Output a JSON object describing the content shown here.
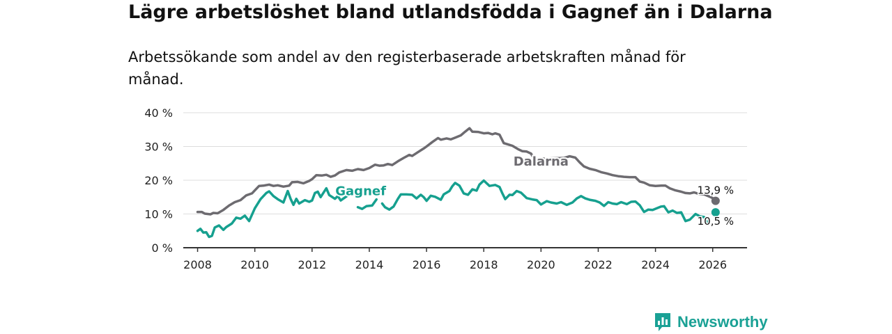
{
  "title": "Lägre arbetslöshet bland utlandsfödda i Gagnef än i Dalarna",
  "subtitle": "Arbetssökande som andel av den registerbaserade arbetskraften månad för månad.",
  "brand": {
    "name": "Newsworthy",
    "icon": "bar-chart-speech-icon"
  },
  "colors": {
    "dalarna": "#6d6b70",
    "gagnef": "#16a08f",
    "grid": "#dddddd",
    "axis": "#333333",
    "brand": "#1aa195"
  },
  "chart_data": {
    "type": "line",
    "title": "Lägre arbetslöshet bland utlandsfödda i Gagnef än i Dalarna",
    "xlabel": "",
    "ylabel": "",
    "xlim": [
      2007.5,
      2027.2
    ],
    "ylim": [
      0,
      40
    ],
    "x_ticks": [
      2008,
      2010,
      2012,
      2014,
      2016,
      2018,
      2020,
      2022,
      2024,
      2026
    ],
    "y_ticks": [
      0,
      10,
      20,
      30,
      40
    ],
    "y_tick_labels": [
      "0 %",
      "10 %",
      "20 %",
      "30 %",
      "40 %"
    ],
    "grid": "horizontal",
    "series": [
      {
        "name": "Dalarna",
        "label": "Dalarna",
        "end_label": "13,9 %",
        "end_value": 13.9,
        "end_x": 2026.1,
        "points": [
          [
            2008.0,
            10.6
          ],
          [
            2008.15,
            10.6
          ],
          [
            2008.25,
            10.1
          ],
          [
            2008.45,
            9.9
          ],
          [
            2008.55,
            10.3
          ],
          [
            2008.7,
            10.2
          ],
          [
            2008.9,
            11.2
          ],
          [
            2009.1,
            12.5
          ],
          [
            2009.3,
            13.5
          ],
          [
            2009.5,
            14.1
          ],
          [
            2009.7,
            15.5
          ],
          [
            2009.9,
            16.1
          ],
          [
            2010.0,
            17.0
          ],
          [
            2010.15,
            18.3
          ],
          [
            2010.3,
            18.4
          ],
          [
            2010.5,
            18.7
          ],
          [
            2010.65,
            18.3
          ],
          [
            2010.8,
            18.5
          ],
          [
            2011.0,
            18.1
          ],
          [
            2011.2,
            18.4
          ],
          [
            2011.3,
            19.4
          ],
          [
            2011.5,
            19.5
          ],
          [
            2011.7,
            19.1
          ],
          [
            2011.9,
            19.8
          ],
          [
            2012.0,
            20.3
          ],
          [
            2012.15,
            21.5
          ],
          [
            2012.35,
            21.4
          ],
          [
            2012.5,
            21.6
          ],
          [
            2012.65,
            21.0
          ],
          [
            2012.8,
            21.4
          ],
          [
            2012.95,
            22.3
          ],
          [
            2013.2,
            23.0
          ],
          [
            2013.4,
            22.8
          ],
          [
            2013.6,
            23.3
          ],
          [
            2013.8,
            23.0
          ],
          [
            2014.0,
            23.6
          ],
          [
            2014.2,
            24.6
          ],
          [
            2014.35,
            24.3
          ],
          [
            2014.5,
            24.4
          ],
          [
            2014.65,
            24.8
          ],
          [
            2014.8,
            24.5
          ],
          [
            2015.0,
            25.6
          ],
          [
            2015.2,
            26.6
          ],
          [
            2015.4,
            27.5
          ],
          [
            2015.5,
            27.2
          ],
          [
            2015.7,
            28.3
          ],
          [
            2015.9,
            29.4
          ],
          [
            2016.0,
            30.0
          ],
          [
            2016.2,
            31.3
          ],
          [
            2016.4,
            32.5
          ],
          [
            2016.5,
            32.0
          ],
          [
            2016.7,
            32.4
          ],
          [
            2016.85,
            32.1
          ],
          [
            2017.0,
            32.6
          ],
          [
            2017.2,
            33.3
          ],
          [
            2017.35,
            34.4
          ],
          [
            2017.5,
            35.4
          ],
          [
            2017.6,
            34.4
          ],
          [
            2017.8,
            34.3
          ],
          [
            2018.0,
            33.9
          ],
          [
            2018.15,
            34.0
          ],
          [
            2018.3,
            33.6
          ],
          [
            2018.4,
            33.9
          ],
          [
            2018.55,
            33.5
          ],
          [
            2018.7,
            31.0
          ],
          [
            2018.85,
            30.6
          ],
          [
            2019.0,
            30.2
          ],
          [
            2019.2,
            29.2
          ],
          [
            2019.35,
            28.6
          ],
          [
            2019.5,
            28.5
          ],
          [
            2019.65,
            27.9
          ],
          [
            2019.75,
            26.5
          ],
          [
            2019.85,
            26.3
          ],
          [
            2020.8,
            26.6
          ],
          [
            2021.0,
            27.1
          ],
          [
            2021.2,
            26.7
          ],
          [
            2021.35,
            25.3
          ],
          [
            2021.5,
            24.1
          ],
          [
            2021.7,
            23.4
          ],
          [
            2021.9,
            23.0
          ],
          [
            2022.1,
            22.4
          ],
          [
            2022.3,
            22.0
          ],
          [
            2022.5,
            21.5
          ],
          [
            2022.7,
            21.2
          ],
          [
            2022.9,
            21.0
          ],
          [
            2023.1,
            20.9
          ],
          [
            2023.3,
            20.9
          ],
          [
            2023.45,
            19.6
          ],
          [
            2023.6,
            19.3
          ],
          [
            2023.8,
            18.5
          ],
          [
            2024.0,
            18.3
          ],
          [
            2024.2,
            18.4
          ],
          [
            2024.35,
            18.4
          ],
          [
            2024.5,
            17.6
          ],
          [
            2024.7,
            17.0
          ],
          [
            2024.9,
            16.6
          ],
          [
            2025.05,
            16.2
          ],
          [
            2025.2,
            16.1
          ],
          [
            2025.35,
            16.4
          ],
          [
            2025.5,
            16.0
          ],
          [
            2025.7,
            15.8
          ],
          [
            2025.9,
            15.1
          ],
          [
            2026.05,
            14.5
          ],
          [
            2026.2,
            14.1
          ]
        ]
      },
      {
        "name": "Gagnef",
        "label": "Gagnef",
        "end_label": "10,5 %",
        "end_value": 10.5,
        "end_x": 2026.1,
        "points": [
          [
            2008.0,
            5.0
          ],
          [
            2008.1,
            5.6
          ],
          [
            2008.2,
            4.5
          ],
          [
            2008.3,
            4.6
          ],
          [
            2008.4,
            3.2
          ],
          [
            2008.5,
            3.5
          ],
          [
            2008.6,
            6.0
          ],
          [
            2008.75,
            6.6
          ],
          [
            2008.9,
            5.3
          ],
          [
            2009.0,
            6.1
          ],
          [
            2009.2,
            7.2
          ],
          [
            2009.35,
            8.9
          ],
          [
            2009.5,
            8.6
          ],
          [
            2009.65,
            9.5
          ],
          [
            2009.8,
            7.9
          ],
          [
            2010.0,
            11.7
          ],
          [
            2010.2,
            14.4
          ],
          [
            2010.4,
            16.2
          ],
          [
            2010.5,
            16.7
          ],
          [
            2010.65,
            15.3
          ],
          [
            2010.8,
            14.4
          ],
          [
            2011.0,
            13.4
          ],
          [
            2011.15,
            16.8
          ],
          [
            2011.25,
            14.5
          ],
          [
            2011.35,
            12.7
          ],
          [
            2011.45,
            14.5
          ],
          [
            2011.55,
            13.1
          ],
          [
            2011.75,
            14.1
          ],
          [
            2011.9,
            13.6
          ],
          [
            2012.0,
            14.0
          ],
          [
            2012.1,
            16.2
          ],
          [
            2012.2,
            16.6
          ],
          [
            2012.3,
            15.0
          ],
          [
            2012.5,
            17.6
          ],
          [
            2012.6,
            15.6
          ],
          [
            2012.8,
            14.5
          ],
          [
            2012.9,
            15.3
          ],
          [
            2013.0,
            14.0
          ],
          [
            2013.2,
            15.2
          ],
          [
            2013.4,
            16.2
          ],
          [
            null,
            null
          ],
          [
            2013.6,
            12.0
          ],
          [
            2013.75,
            11.5
          ],
          [
            2013.9,
            12.3
          ],
          [
            2014.1,
            12.5
          ],
          [
            2014.25,
            14.3
          ],
          [
            null,
            null
          ],
          [
            2014.45,
            13.1
          ],
          [
            2014.55,
            12.0
          ],
          [
            2014.7,
            11.3
          ],
          [
            2014.85,
            12.2
          ],
          [
            2015.0,
            14.5
          ],
          [
            2015.1,
            15.8
          ],
          [
            2015.3,
            15.8
          ],
          [
            2015.5,
            15.7
          ],
          [
            2015.65,
            14.6
          ],
          [
            2015.8,
            15.7
          ],
          [
            2015.9,
            15.0
          ],
          [
            2016.0,
            13.9
          ],
          [
            2016.15,
            15.4
          ],
          [
            2016.3,
            15.1
          ],
          [
            2016.5,
            14.2
          ],
          [
            2016.6,
            15.8
          ],
          [
            2016.8,
            16.8
          ],
          [
            2016.9,
            18.2
          ],
          [
            2017.0,
            19.2
          ],
          [
            2017.15,
            18.4
          ],
          [
            2017.3,
            16.1
          ],
          [
            2017.45,
            15.7
          ],
          [
            2017.6,
            17.3
          ],
          [
            2017.75,
            16.9
          ],
          [
            2017.85,
            18.7
          ],
          [
            2018.0,
            19.9
          ],
          [
            2018.2,
            18.3
          ],
          [
            2018.4,
            18.6
          ],
          [
            2018.55,
            18.0
          ],
          [
            2018.65,
            16.1
          ],
          [
            2018.75,
            14.4
          ],
          [
            2018.9,
            15.7
          ],
          [
            2019.0,
            15.6
          ],
          [
            2019.15,
            16.8
          ],
          [
            2019.3,
            16.3
          ],
          [
            2019.5,
            14.7
          ],
          [
            2019.7,
            14.3
          ],
          [
            2019.85,
            14.1
          ],
          [
            2020.0,
            12.8
          ],
          [
            2020.2,
            13.8
          ],
          [
            2020.35,
            13.4
          ],
          [
            2020.55,
            13.1
          ],
          [
            2020.7,
            13.5
          ],
          [
            2020.9,
            12.7
          ],
          [
            2021.1,
            13.4
          ],
          [
            2021.25,
            14.6
          ],
          [
            2021.4,
            15.3
          ],
          [
            2021.55,
            14.6
          ],
          [
            2021.7,
            14.2
          ],
          [
            2021.9,
            13.9
          ],
          [
            2022.05,
            13.4
          ],
          [
            2022.2,
            12.4
          ],
          [
            2022.35,
            13.5
          ],
          [
            2022.5,
            13.1
          ],
          [
            2022.65,
            12.9
          ],
          [
            2022.8,
            13.5
          ],
          [
            2023.0,
            12.9
          ],
          [
            2023.15,
            13.6
          ],
          [
            2023.3,
            13.7
          ],
          [
            2023.45,
            12.6
          ],
          [
            2023.6,
            10.6
          ],
          [
            2023.75,
            11.3
          ],
          [
            2023.9,
            11.2
          ],
          [
            2024.05,
            11.7
          ],
          [
            2024.2,
            12.2
          ],
          [
            2024.3,
            12.3
          ],
          [
            2024.45,
            10.5
          ],
          [
            2024.6,
            11.0
          ],
          [
            2024.75,
            10.3
          ],
          [
            2024.9,
            10.5
          ],
          [
            2025.05,
            7.9
          ],
          [
            2025.2,
            8.3
          ],
          [
            2025.4,
            10.0
          ],
          [
            2025.55,
            9.3
          ],
          [
            2025.7,
            9.1
          ],
          [
            2025.8,
            7.6
          ]
        ]
      }
    ]
  }
}
